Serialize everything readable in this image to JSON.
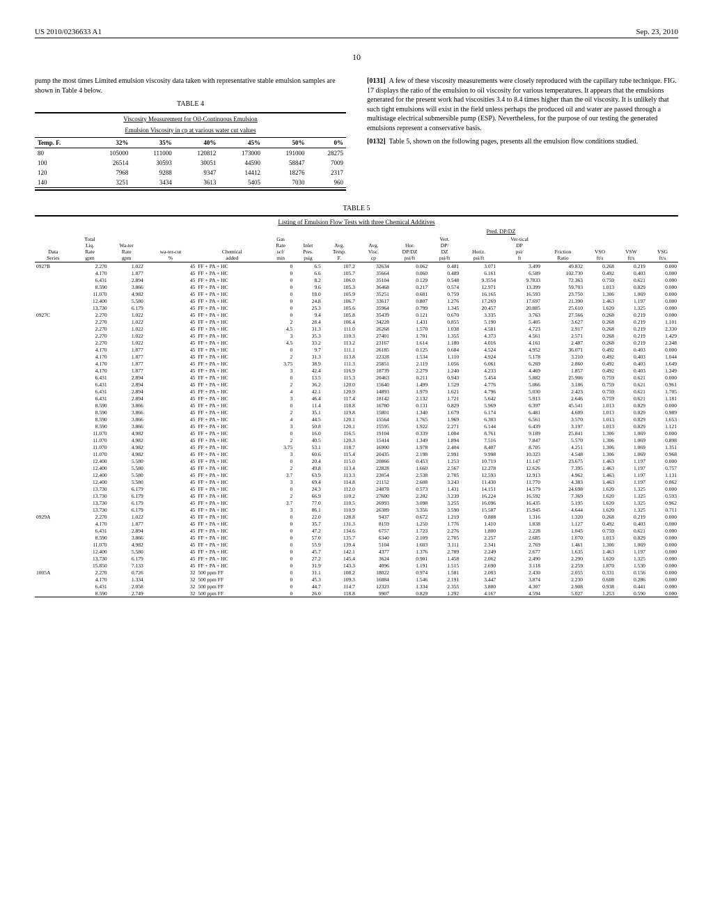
{
  "header": {
    "left": "US 2010/0236633 A1",
    "right": "Sep. 23, 2010"
  },
  "page_number": "10",
  "left_col": {
    "para1": "pump the most times Limited emulsion viscosity data taken with representative stable emulsion samples are shown in Table 4 below.",
    "table4_label": "TABLE 4",
    "table4_title": "Viscosity Measurement for Oil-Continuous Emulsion",
    "table4_sub": "Emulsion Viscosity in cp at various water cut values",
    "table4": {
      "columns": [
        "Temp. F.",
        "32%",
        "35%",
        "40%",
        "45%",
        "50%",
        "0%"
      ],
      "rows": [
        [
          "80",
          "105000",
          "111000",
          "120812",
          "173000",
          "191000",
          "28275"
        ],
        [
          "100",
          "26514",
          "30593",
          "30051",
          "44590",
          "58847",
          "7009"
        ],
        [
          "120",
          "7968",
          "9288",
          "9347",
          "14412",
          "18276",
          "2317"
        ],
        [
          "140",
          "3251",
          "3434",
          "3613",
          "5405",
          "7030",
          "960"
        ]
      ]
    }
  },
  "right_col": {
    "para1_num": "[0131]",
    "para1": "A few of these viscosity measurements were closely reproduced with the capillary tube technique. FIG. 17 displays the ratio of the emulsion to oil viscosity for various temperatures. It appears that the emulsions generated for the present work had viscosities 3.4 to 8.4 times higher than the oil viscosity. It is unlikely that such tight emulsions will exist in the field unless perhaps the produced oil and water are passed through a multistage electrical submersible pump (ESP). Nevertheless, for the purpose of our testing the generated emulsions represent a conservative basis.",
    "para2_num": "[0132]",
    "para2": "Table 5, shown on the following pages, presents all the emulsion flow conditions studied."
  },
  "table5": {
    "label": "TABLE 5",
    "subtitle": "Listing of Emulsion Flow Tests with three Chemical Additives",
    "pred_header": "Pred. DP/DZ",
    "columns": [
      "Data Series",
      "Total Liq. Rate gpm",
      "Wa-ter Rate gpm",
      "wa-ter-cut %",
      "Chemical added",
      "Gas Rate scf/ min",
      "Inlet Pres. psig",
      "Avg. Temp. F.",
      "Avg. Visc. cp",
      "Hor. DP/DZ psi/ft",
      "Vert. DP/ DZ psi/ft",
      "Horiz. psi/ft",
      "Ver-tical DP psi/ ft",
      "Friction Ratio",
      "VSO ft/s",
      "VSW ft/s",
      "VSG ft/s"
    ],
    "rows": [
      [
        "0927B",
        "2.270",
        "1.022",
        "45",
        "FF + PA + HC",
        "0",
        "6.5",
        "107.2",
        "32634",
        "0.062",
        "0.481",
        "3.071",
        "3.499",
        "49.832",
        "0.268",
        "0.219",
        "0.000"
      ],
      [
        "",
        "4.170",
        "1.877",
        "45",
        "FF + PA + HC",
        "0",
        "6.6",
        "105.7",
        "35664",
        "0.060",
        "0.489",
        "6.161",
        "6.589",
        "102.730",
        "0.492",
        "0.403",
        "0.000"
      ],
      [
        "",
        "6.431",
        "2.894",
        "45",
        "FF + PA + HC",
        "0",
        "8.2",
        "106.0",
        "35104",
        "0.129",
        "0.548",
        "9.3554",
        "9.7833",
        "72.363",
        "0.759",
        "0.621",
        "0.000"
      ],
      [
        "",
        "8.590",
        "3.866",
        "45",
        "FF + PA + HC",
        "0",
        "9.6",
        "105.3",
        "36468",
        "0.217",
        "0.574",
        "12.971",
        "13.399",
        "59.703",
        "1.013",
        "0.829",
        "0.000"
      ],
      [
        "",
        "11.070",
        "4.982",
        "45",
        "FF + PA + HC",
        "0",
        "18.0",
        "105.9",
        "35251",
        "0.681",
        "0.759",
        "16.165",
        "16.593",
        "23.750",
        "1.306",
        "1.069",
        "0.000"
      ],
      [
        "",
        "12.400",
        "5.580",
        "45",
        "FF + PA + HC",
        "0",
        "24.8",
        "106.7",
        "33617",
        "0.807",
        "1.276",
        "17.269",
        "17.697",
        "21.390",
        "1.463",
        "1.197",
        "0.000"
      ],
      [
        "",
        "13.730",
        "6.179",
        "45",
        "FF + PA + HC",
        "0",
        "25.3",
        "105.6",
        "35964",
        "0.799",
        "1.345",
        "20.457",
        "20.885",
        "25.610",
        "1.620",
        "1.325",
        "0.000"
      ],
      [
        "0927C",
        "2.270",
        "1.022",
        "45",
        "FF + PA + HC",
        "0",
        "9.4",
        "105.8",
        "35439",
        "0.121",
        "0.670",
        "3.335",
        "3.763",
        "27.566",
        "0.268",
        "0.219",
        "0.000"
      ],
      [
        "",
        "2.270",
        "1.022",
        "45",
        "FF + PA + HC",
        "2",
        "28.4",
        "106.4",
        "34228",
        "1.431",
        "0.855",
        "5.190",
        "5.405",
        "3.627",
        "0.268",
        "0.219",
        "1.101"
      ],
      [
        "",
        "2.270",
        "1.022",
        "45",
        "FF + PA + HC",
        "4.5",
        "31.3",
        "111.0",
        "26268",
        "1.570",
        "1.038",
        "4.581",
        "4.723",
        "2.917",
        "0.268",
        "0.219",
        "2.330"
      ],
      [
        "",
        "2.270",
        "1.022",
        "45",
        "FF + PA + HC",
        "3",
        "35.3",
        "110.3",
        "27401",
        "1.701",
        "1.355",
        "4.373",
        "4.561",
        "2.571",
        "0.268",
        "0.219",
        "1.429"
      ],
      [
        "",
        "2.270",
        "1.022",
        "45",
        "FF + PA + HC",
        "4.5",
        "33.2",
        "113.2",
        "23167",
        "1.614",
        "1.180",
        "4.016",
        "4.161",
        "2.487",
        "0.268",
        "0.219",
        "2.248"
      ],
      [
        "",
        "4.170",
        "1.877",
        "45",
        "FF + PA + HC",
        "0",
        "9.7",
        "111.1",
        "26185",
        "0.125",
        "0.684",
        "4.524",
        "4.952",
        "36.071",
        "0.492",
        "0.403",
        "0.000"
      ],
      [
        "",
        "4.170",
        "1.877",
        "45",
        "FF + PA + HC",
        "2",
        "31.3",
        "113.8",
        "22328",
        "1.534",
        "1.110",
        "4.924",
        "5.178",
        "3.210",
        "0.492",
        "0.403",
        "1.044"
      ],
      [
        "",
        "4.170",
        "1.877",
        "45",
        "FF + PA + HC",
        "3.75",
        "38.9",
        "111.3",
        "25851",
        "2.119",
        "1.056",
        "6.061",
        "6.269",
        "2.860",
        "0.492",
        "0.403",
        "1.649"
      ],
      [
        "",
        "4.170",
        "1.877",
        "45",
        "FF + PA + HC",
        "3",
        "42.4",
        "116.9",
        "18739",
        "2.279",
        "1.240",
        "4.233",
        "4.469",
        "1.857",
        "0.492",
        "0.403",
        "1.249"
      ],
      [
        "",
        "6.431",
        "2.894",
        "45",
        "FF + PA + HC",
        "0",
        "13.5",
        "115.3",
        "20463",
        "0.211",
        "0.943",
        "5.454",
        "5.882",
        "25.906",
        "0.759",
        "0.621",
        "0.000"
      ],
      [
        "",
        "6.431",
        "2.894",
        "45",
        "FF + PA + HC",
        "2",
        "36.2",
        "120.0",
        "15640",
        "1.499",
        "1.529",
        "4.776",
        "5.066",
        "3.186",
        "0.759",
        "0.621",
        "0.961"
      ],
      [
        "",
        "6.431",
        "2.894",
        "45",
        "FF + PA + HC",
        "4",
        "42.1",
        "120.9",
        "14893",
        "1.979",
        "1.621",
        "4.796",
        "5.030",
        "2.423",
        "0.759",
        "0.621",
        "1.705"
      ],
      [
        "",
        "6.431",
        "2.894",
        "45",
        "FF + PA + HC",
        "3",
        "46.4",
        "117.4",
        "18142",
        "2.132",
        "1.721",
        "5.642",
        "5.913",
        "2.646",
        "0.759",
        "0.621",
        "1.181"
      ],
      [
        "",
        "8.590",
        "3.866",
        "45",
        "FF + PA + HC",
        "0",
        "11.4",
        "118.8",
        "16780",
        "0.131",
        "0.829",
        "5.969",
        "6.397",
        "45.541",
        "1.013",
        "0.829",
        "0.000"
      ],
      [
        "",
        "8.590",
        "3.866",
        "45",
        "FF + PA + HC",
        "2",
        "35.1",
        "119.8",
        "15801",
        "1.340",
        "1.679",
        "6.174",
        "6.481",
        "4.609",
        "1.013",
        "0.829",
        "0.989"
      ],
      [
        "",
        "8.590",
        "3.866",
        "45",
        "FF + PA + HC",
        "4",
        "44.5",
        "120.1",
        "15564",
        "1.765",
        "1.969",
        "6.303",
        "6.561",
        "3.570",
        "1.013",
        "0.829",
        "1.653"
      ],
      [
        "",
        "8.590",
        "3.866",
        "45",
        "FF + PA + HC",
        "3",
        "50.8",
        "120.1",
        "15595",
        "1.922",
        "2.271",
        "6.144",
        "6.439",
        "3.197",
        "1.013",
        "0.829",
        "1.121"
      ],
      [
        "",
        "11.070",
        "4.982",
        "45",
        "FF + PA + HC",
        "0",
        "16.0",
        "116.5",
        "19104",
        "0.339",
        "1.004",
        "8.761",
        "9.189",
        "25.841",
        "1.306",
        "1.069",
        "0.000"
      ],
      [
        "",
        "11.070",
        "4.982",
        "45",
        "FF + PA + HC",
        "2",
        "40.5",
        "120.3",
        "15414",
        "1.349",
        "1.894",
        "7.516",
        "7.847",
        "5.570",
        "1.306",
        "1.069",
        "0.898"
      ],
      [
        "",
        "11.070",
        "4.982",
        "45",
        "FF + PA + HC",
        "3.75",
        "53.1",
        "118.7",
        "16900",
        "1.978",
        "2.404",
        "8.407",
        "8.705",
        "4.251",
        "1.306",
        "1.069",
        "1.351"
      ],
      [
        "",
        "11.070",
        "4.982",
        "45",
        "FF + PA + HC",
        "3",
        "60.6",
        "115.4",
        "20435",
        "2.198",
        "2.991",
        "9.998",
        "10.323",
        "4.548",
        "1.306",
        "1.069",
        "0.968"
      ],
      [
        "",
        "12.400",
        "5.580",
        "45",
        "FF + PA + HC",
        "0",
        "20.4",
        "115.0",
        "20866",
        "0.453",
        "1.253",
        "10.719",
        "11.147",
        "23.675",
        "1.463",
        "1.197",
        "0.000"
      ],
      [
        "",
        "12.400",
        "5.580",
        "45",
        "FF + PA + HC",
        "2",
        "49.8",
        "113.4",
        "22828",
        "1.660",
        "2.567",
        "12.278",
        "12.626",
        "7.395",
        "1.463",
        "1.197",
        "0.757"
      ],
      [
        "",
        "12.400",
        "5.580",
        "45",
        "FF + PA + HC",
        "3.7",
        "63.9",
        "113.3",
        "23054",
        "2.538",
        "2.705",
        "12.593",
        "12.913",
        "4.962",
        "1.463",
        "1.197",
        "1.131"
      ],
      [
        "",
        "12.400",
        "5.580",
        "45",
        "FF + PA + HC",
        "3",
        "69.4",
        "114.8",
        "21152",
        "2.608",
        "3.243",
        "11.430",
        "11.770",
        "4.383",
        "1.463",
        "1.197",
        "0.862"
      ],
      [
        "",
        "13.730",
        "6.179",
        "45",
        "FF + PA + HC",
        "0",
        "24.3",
        "112.0",
        "24878",
        "0.573",
        "1.431",
        "14.151",
        "14.579",
        "24.698",
        "1.620",
        "1.325",
        "0.000"
      ],
      [
        "",
        "13.730",
        "6.179",
        "45",
        "FF + PA + HC",
        "2",
        "66.9",
        "110.2",
        "27600",
        "2.202",
        "3.239",
        "16.224",
        "16.592",
        "7.369",
        "1.620",
        "1.325",
        "0.593"
      ],
      [
        "",
        "13.730",
        "6.179",
        "45",
        "FF + PA + HC",
        "3.7",
        "77.0",
        "110.5",
        "26993",
        "3.098",
        "3.255",
        "16.096",
        "16.435",
        "5.195",
        "1.620",
        "1.325",
        "0.962"
      ],
      [
        "",
        "13.730",
        "6.179",
        "45",
        "FF + PA + HC",
        "3",
        "86.1",
        "110.9",
        "26389",
        "3.356",
        "3.590",
        "15.587",
        "15.945",
        "4.644",
        "1.620",
        "1.325",
        "0.711"
      ],
      [
        "0929A",
        "2.270",
        "1.022",
        "45",
        "FF + PA + HC",
        "0",
        "22.0",
        "128.8",
        "9437",
        "0.672",
        "1.219",
        "0.888",
        "1.316",
        "1.320",
        "0.268",
        "0.219",
        "0.000"
      ],
      [
        "",
        "4.170",
        "1.877",
        "45",
        "FF + PA + HC",
        "0",
        "35.7",
        "131.3",
        "8159",
        "1.250",
        "1.776",
        "1.410",
        "1.838",
        "1.127",
        "0.492",
        "0.403",
        "0.000"
      ],
      [
        "",
        "6.431",
        "2.894",
        "45",
        "FF + PA + HC",
        "0",
        "47.2",
        "134.6",
        "6757",
        "1.723",
        "2.276",
        "1.800",
        "2.228",
        "1.045",
        "0.759",
        "0.621",
        "0.000"
      ],
      [
        "",
        "8.590",
        "3.866",
        "45",
        "FF + PA + HC",
        "0",
        "57.0",
        "135.7",
        "6340",
        "2.109",
        "2.705",
        "2.257",
        "2.685",
        "1.070",
        "1.013",
        "0.829",
        "0.000"
      ],
      [
        "",
        "11.070",
        "4.982",
        "45",
        "FF + PA + HC",
        "0",
        "55.9",
        "139.4",
        "5104",
        "1.603",
        "3.111",
        "2.341",
        "2.769",
        "1.461",
        "1.306",
        "1.069",
        "0.000"
      ],
      [
        "",
        "12.400",
        "5.580",
        "45",
        "FF + PA + HC",
        "0",
        "45.7",
        "142.1",
        "4377",
        "1.376",
        "2.789",
        "2.249",
        "2.677",
        "1.635",
        "1.463",
        "1.197",
        "0.000"
      ],
      [
        "",
        "13.730",
        "6.179",
        "45",
        "FF + PA + HC",
        "0",
        "27.2",
        "145.4",
        "3624",
        "0.901",
        "1.458",
        "2.062",
        "2.490",
        "2.290",
        "1.620",
        "1.325",
        "0.000"
      ],
      [
        "",
        "15.850",
        "7.133",
        "45",
        "FF + PA + HC",
        "0",
        "31.9",
        "143.3",
        "4096",
        "1.191",
        "1.515",
        "2.690",
        "3.118",
        "2.259",
        "1.870",
        "1.530",
        "0.000"
      ],
      [
        "1005A",
        "2.270",
        "0.726",
        "32",
        "500 ppm FF",
        "0",
        "31.1",
        "108.2",
        "18022",
        "0.974",
        "1.581",
        "2.003",
        "2.430",
        "2.055",
        "0.331",
        "0.156",
        "0.000"
      ],
      [
        "",
        "4.170",
        "1.334",
        "32",
        "500 ppm FF",
        "0",
        "45.3",
        "109.3",
        "16884",
        "1.546",
        "2.191",
        "3.447",
        "3.874",
        "2.230",
        "0.608",
        "0.286",
        "0.000"
      ],
      [
        "",
        "6.431",
        "2.058",
        "32",
        "500 ppm FF",
        "0",
        "44.7",
        "114.7",
        "12323",
        "1.334",
        "2.355",
        "3.880",
        "4.307",
        "2.908",
        "0.938",
        "0.441",
        "0.000"
      ],
      [
        "",
        "8.590",
        "2.749",
        "32",
        "500 ppm FF",
        "0",
        "26.0",
        "118.8",
        "9907",
        "0.829",
        "1.292",
        "4.167",
        "4.594",
        "5.027",
        "1.253",
        "0.590",
        "0.000"
      ]
    ]
  }
}
